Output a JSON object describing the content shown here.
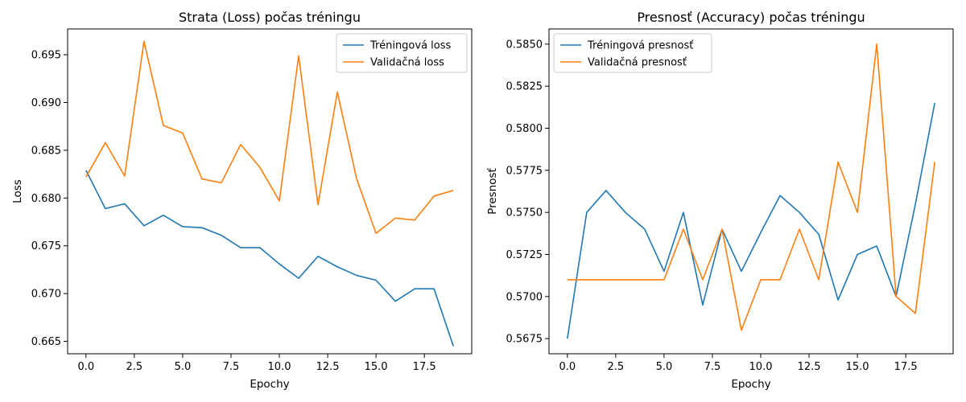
{
  "chart_data": [
    {
      "type": "line",
      "title": "Strata (Loss) počas tréningu",
      "xlabel": "Epochy",
      "ylabel": "Loss",
      "xlim": [
        -0.95,
        19.95
      ],
      "ylim": [
        0.6637,
        0.6977
      ],
      "xticks": [
        0.0,
        2.5,
        5.0,
        7.5,
        10.0,
        12.5,
        15.0,
        17.5
      ],
      "xtick_labels": [
        "0.0",
        "2.5",
        "5.0",
        "7.5",
        "10.0",
        "12.5",
        "15.0",
        "17.5"
      ],
      "yticks": [
        0.665,
        0.67,
        0.675,
        0.68,
        0.685,
        0.69,
        0.695
      ],
      "ytick_labels": [
        "0.665",
        "0.670",
        "0.675",
        "0.680",
        "0.685",
        "0.690",
        "0.695"
      ],
      "legend_position": "top-right",
      "grid": false,
      "x": [
        0,
        1,
        2,
        3,
        4,
        5,
        6,
        7,
        8,
        9,
        10,
        11,
        12,
        13,
        14,
        15,
        16,
        17,
        18,
        19
      ],
      "series": [
        {
          "name": "Tréningová loss",
          "color": "#1f77b4",
          "values": [
            0.6829,
            0.6789,
            0.6794,
            0.6771,
            0.6782,
            0.677,
            0.6769,
            0.6761,
            0.6748,
            0.6748,
            0.6731,
            0.6716,
            0.6739,
            0.6728,
            0.6719,
            0.6714,
            0.6692,
            0.6705,
            0.6705,
            0.6645
          ]
        },
        {
          "name": "Validačná loss",
          "color": "#ff7f0e",
          "values": [
            0.6822,
            0.6858,
            0.6823,
            0.6964,
            0.6876,
            0.6868,
            0.682,
            0.6816,
            0.6856,
            0.6832,
            0.6797,
            0.6949,
            0.6793,
            0.6911,
            0.682,
            0.6763,
            0.6779,
            0.6777,
            0.6802,
            0.6808
          ]
        }
      ]
    },
    {
      "type": "line",
      "title": "Presnosť (Accuracy) počas tréningu",
      "xlabel": "Epochy",
      "ylabel": "Presnosť",
      "xlim": [
        -0.95,
        19.95
      ],
      "ylim": [
        0.5666,
        0.5859
      ],
      "xticks": [
        0.0,
        2.5,
        5.0,
        7.5,
        10.0,
        12.5,
        15.0,
        17.5
      ],
      "xtick_labels": [
        "0.0",
        "2.5",
        "5.0",
        "7.5",
        "10.0",
        "12.5",
        "15.0",
        "17.5"
      ],
      "yticks": [
        0.5675,
        0.57,
        0.5725,
        0.575,
        0.5775,
        0.58,
        0.5825,
        0.585
      ],
      "ytick_labels": [
        "0.5675",
        "0.5700",
        "0.5725",
        "0.5750",
        "0.5775",
        "0.5800",
        "0.5825",
        "0.5850"
      ],
      "legend_position": "top-left",
      "grid": false,
      "x": [
        0,
        1,
        2,
        3,
        4,
        5,
        6,
        7,
        8,
        9,
        10,
        11,
        12,
        13,
        14,
        15,
        16,
        17,
        18,
        19
      ],
      "series": [
        {
          "name": "Tréningová presnosť",
          "color": "#1f77b4",
          "values": [
            0.5675,
            0.575,
            0.5763,
            0.575,
            0.574,
            0.5715,
            0.575,
            0.5695,
            0.574,
            0.5715,
            0.5738,
            0.576,
            0.575,
            0.5737,
            0.5698,
            0.5725,
            0.573,
            0.57,
            0.5755,
            0.5815
          ]
        },
        {
          "name": "Validačná presnosť",
          "color": "#ff7f0e",
          "values": [
            0.571,
            0.571,
            0.571,
            0.571,
            0.571,
            0.571,
            0.574,
            0.571,
            0.574,
            0.568,
            0.571,
            0.571,
            0.574,
            0.571,
            0.578,
            0.575,
            0.585,
            0.57,
            0.569,
            0.578
          ]
        }
      ]
    }
  ]
}
